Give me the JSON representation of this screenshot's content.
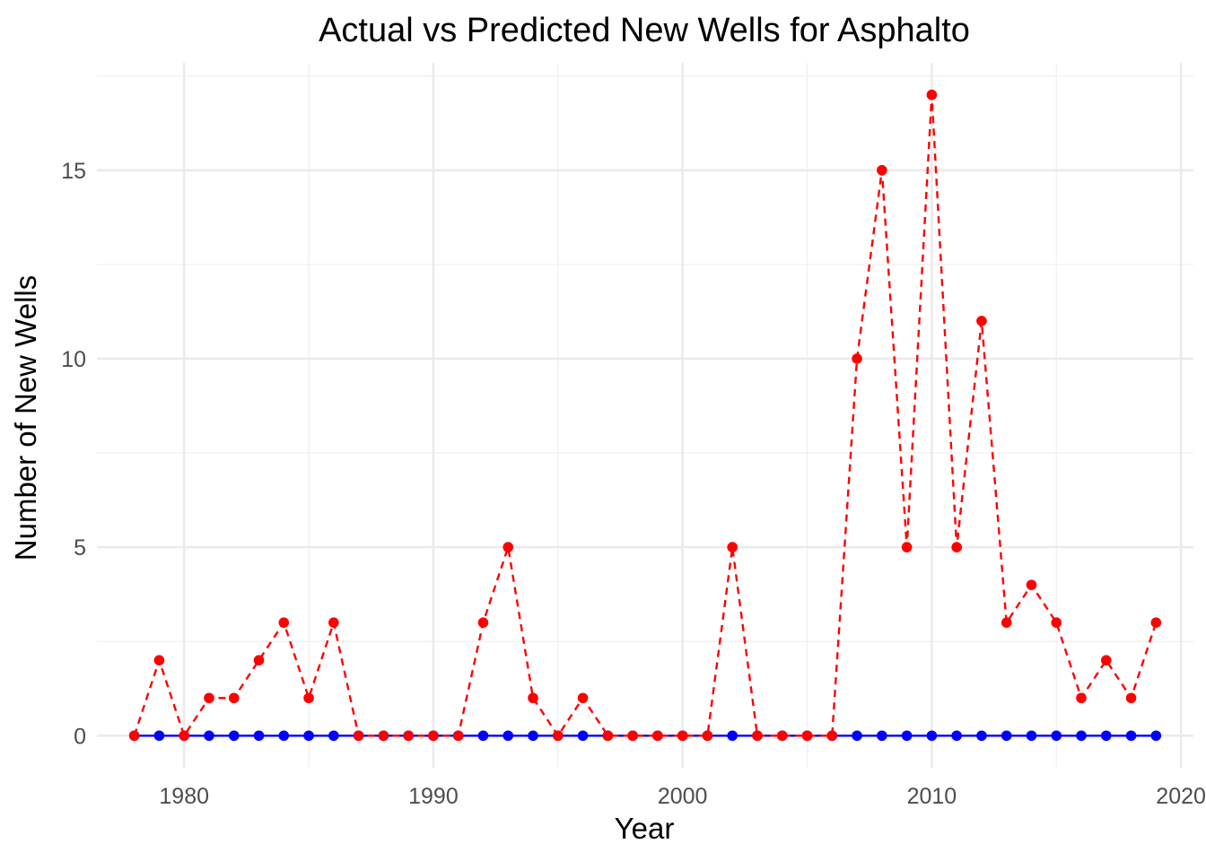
{
  "chart_data": {
    "type": "line",
    "title": "Actual vs Predicted New Wells for Asphalto",
    "xlabel": "Year",
    "ylabel": "Number of New Wells",
    "xlim": [
      1976.5,
      2020.5
    ],
    "ylim": [
      -0.85,
      17.85
    ],
    "x_ticks": [
      1980,
      1990,
      2000,
      2010,
      2020
    ],
    "y_ticks": [
      0,
      5,
      10,
      15
    ],
    "grid": true,
    "legend": "none",
    "x": [
      1978,
      1979,
      1980,
      1981,
      1982,
      1983,
      1984,
      1985,
      1986,
      1987,
      1988,
      1989,
      1990,
      1991,
      1992,
      1993,
      1994,
      1995,
      1996,
      1997,
      1998,
      1999,
      2000,
      2001,
      2002,
      2003,
      2004,
      2005,
      2006,
      2007,
      2008,
      2009,
      2010,
      2011,
      2012,
      2013,
      2014,
      2015,
      2016,
      2017,
      2018,
      2019
    ],
    "series": [
      {
        "color": "#0000ff",
        "line_style": "solid",
        "values": [
          0,
          0,
          0,
          0,
          0,
          0,
          0,
          0,
          0,
          0,
          0,
          0,
          0,
          0,
          0,
          0,
          0,
          0,
          0,
          0,
          0,
          0,
          0,
          0,
          0,
          0,
          0,
          0,
          0,
          0,
          0,
          0,
          0,
          0,
          0,
          0,
          0,
          0,
          0,
          0,
          0,
          0
        ]
      },
      {
        "color": "#ff0000",
        "line_style": "dashed",
        "values": [
          0,
          2,
          0,
          1,
          1,
          2,
          3,
          1,
          3,
          0,
          0,
          0,
          0,
          0,
          3,
          5,
          1,
          0,
          1,
          0,
          0,
          0,
          0,
          0,
          5,
          0,
          0,
          0,
          0,
          10,
          15,
          5,
          17,
          5,
          11,
          3,
          4,
          3,
          1,
          2,
          1,
          3
        ]
      }
    ]
  }
}
